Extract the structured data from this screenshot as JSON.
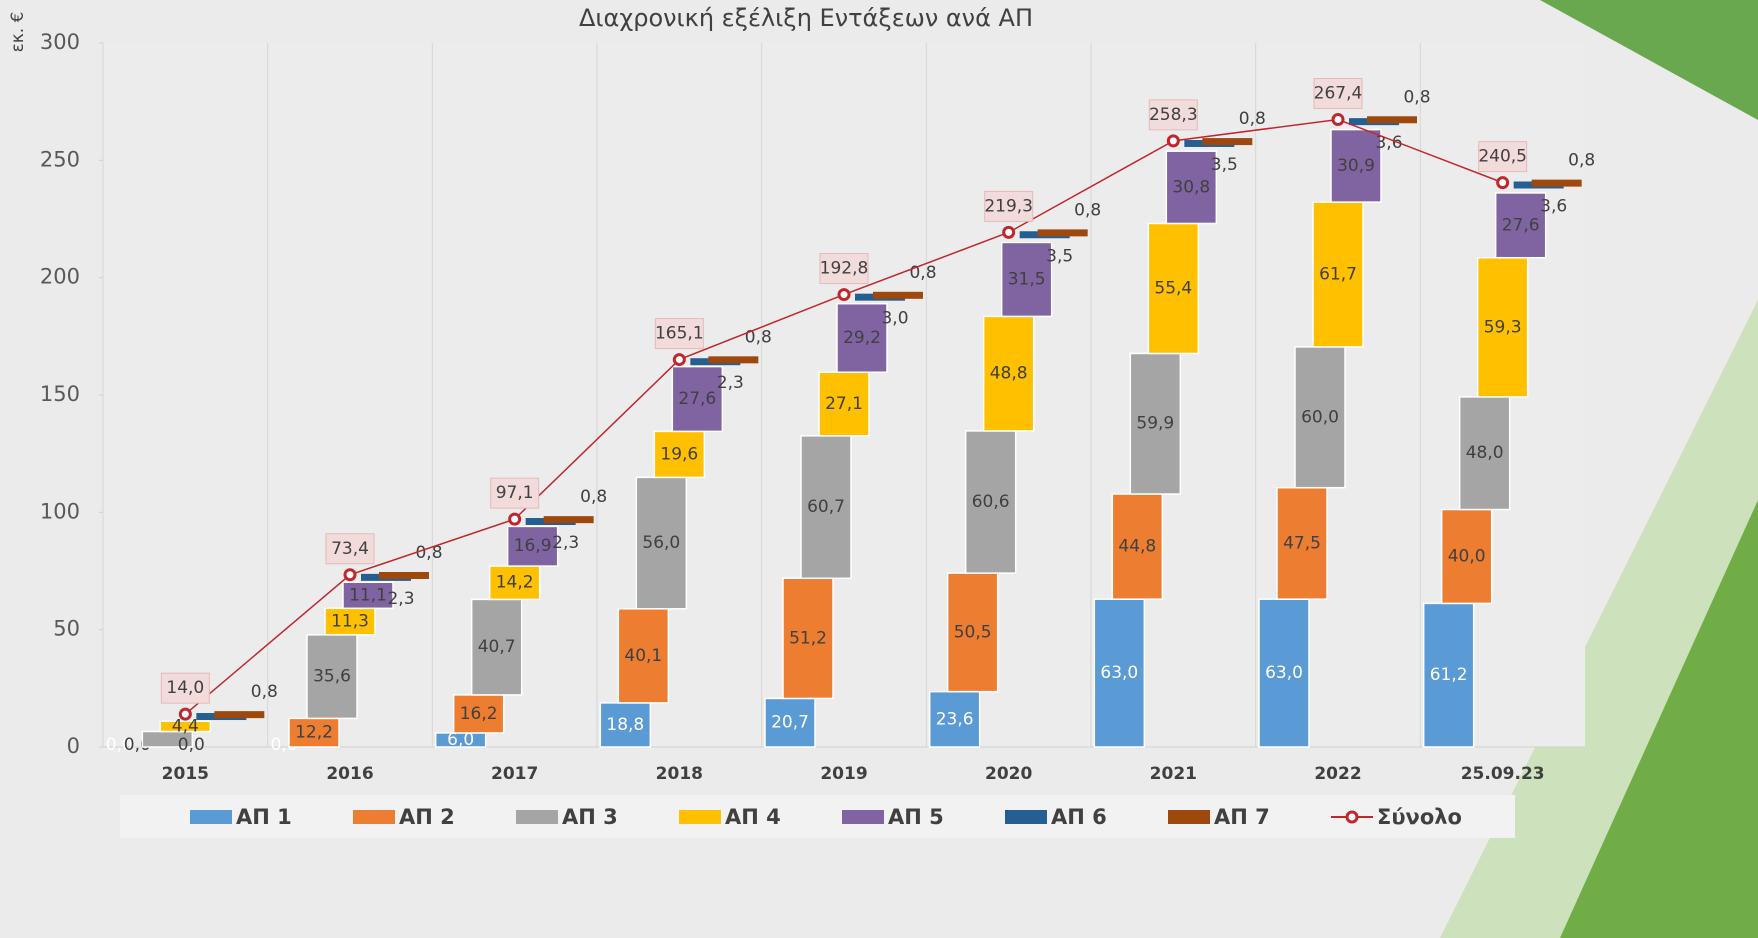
{
  "chart_data": {
    "type": "waterfall",
    "title": "Διαχρονική εξέλιξη Εντάξεων ανά ΑΠ",
    "y_label": "εκ. €",
    "categories": [
      "2015",
      "2016",
      "2017",
      "2018",
      "2019",
      "2020",
      "2021",
      "2022",
      "25.09.23"
    ],
    "ylim": [
      0,
      300
    ],
    "yticks": [
      0,
      50,
      100,
      150,
      200,
      250,
      300
    ],
    "series": [
      {
        "name": "ΑΠ 1",
        "color": "#5b9bd5",
        "values": [
          0.0,
          0.0,
          6.0,
          18.8,
          20.7,
          23.6,
          63.0,
          63.0,
          61.2
        ],
        "value_labels": [
          "0,0",
          "0,0",
          "6,0",
          "18,8",
          "20,7",
          "23,6",
          "63,0",
          "63,0",
          "61,2"
        ]
      },
      {
        "name": "ΑΠ 2",
        "color": "#ed7d31",
        "values": [
          0.0,
          12.2,
          16.2,
          40.1,
          51.2,
          50.5,
          44.8,
          47.5,
          40.0
        ],
        "value_labels": [
          "0,0",
          "12,2",
          "16,2",
          "40,1",
          "51,2",
          "50,5",
          "44,8",
          "47,5",
          "40,0"
        ]
      },
      {
        "name": "ΑΠ 3",
        "color": "#a5a5a5",
        "values": [
          6.6,
          35.6,
          40.7,
          56.0,
          60.7,
          60.6,
          59.9,
          60.0,
          48.0
        ],
        "value_labels": [
          null,
          "35,6",
          "40,7",
          "56,0",
          "60,7",
          "60,6",
          "59,9",
          "60,0",
          "48,0"
        ]
      },
      {
        "name": "ΑΠ 4",
        "color": "#ffc000",
        "values": [
          4.4,
          11.3,
          14.2,
          19.6,
          27.1,
          48.8,
          55.4,
          61.7,
          59.3
        ],
        "value_labels": [
          "4,4",
          "11,3",
          "14,2",
          "19,6",
          "27,1",
          "48,8",
          "55,4",
          "61,7",
          "59,3"
        ]
      },
      {
        "name": "ΑΠ 5",
        "color": "#8064a2",
        "values": [
          0.0,
          11.1,
          16.9,
          27.6,
          29.2,
          31.5,
          30.8,
          30.9,
          27.6
        ],
        "value_labels": [
          "0,0",
          "11,1",
          "16,9",
          "27,6",
          "29,2",
          "31,5",
          "30,8",
          "30,9",
          "27,6"
        ]
      },
      {
        "name": "ΑΠ 6",
        "color": "#255e91",
        "values": [
          2.2,
          2.3,
          2.3,
          2.3,
          3.0,
          3.5,
          3.5,
          3.6,
          3.6
        ],
        "value_labels": [
          null,
          "2,3",
          "2,3",
          "2,3",
          "3,0",
          "3,5",
          "3,5",
          "3,6",
          "3,6"
        ]
      },
      {
        "name": "ΑΠ 7",
        "color": "#9e480e",
        "values": [
          0.8,
          0.8,
          0.8,
          0.8,
          0.8,
          0.8,
          0.8,
          0.8,
          0.8
        ],
        "value_labels": [
          "0,8",
          "0,8",
          "0,8",
          "0,8",
          "0,8",
          "0,8",
          "0,8",
          "0,8",
          "0,8"
        ]
      }
    ],
    "total": {
      "name": "Σύνολο",
      "color": "#c0272d",
      "values": [
        14.0,
        73.4,
        97.1,
        165.1,
        192.8,
        219.3,
        258.3,
        267.4,
        240.5
      ],
      "value_labels": [
        "14,0",
        "73,4",
        "97,1",
        "165,1",
        "192,8",
        "219,3",
        "258,3",
        "267,4",
        "240,5"
      ]
    }
  }
}
